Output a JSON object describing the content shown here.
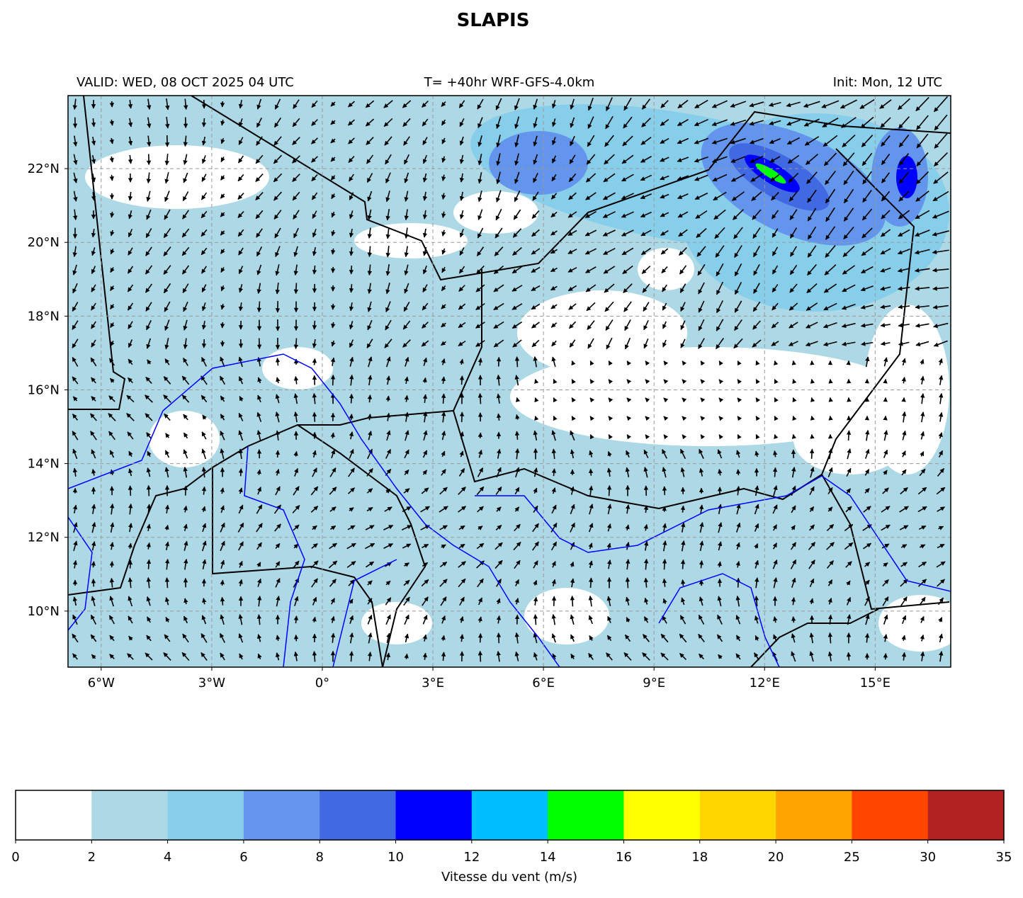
{
  "title": "SLAPIS",
  "valid": "VALID: WED, 08 OCT 2025 04 UTC",
  "run": "T= +40hr WRF-GFS-4.0km",
  "init": "Init: Mon, 12 UTC",
  "map": {
    "xlim": [
      -6.9,
      17.05
    ],
    "ylim": [
      8.48,
      23.98
    ],
    "xticks": [
      {
        "value": -6,
        "label": "6°W"
      },
      {
        "value": -3,
        "label": "3°W"
      },
      {
        "value": 0,
        "label": "0°"
      },
      {
        "value": 3,
        "label": "3°E"
      },
      {
        "value": 6,
        "label": "6°E"
      },
      {
        "value": 9,
        "label": "9°E"
      },
      {
        "value": 12,
        "label": "12°E"
      },
      {
        "value": 15,
        "label": "15°E"
      }
    ],
    "yticks": [
      {
        "value": 10,
        "label": "10°N"
      },
      {
        "value": 12,
        "label": "12°N"
      },
      {
        "value": 14,
        "label": "14°N"
      },
      {
        "value": 16,
        "label": "16°N"
      },
      {
        "value": 18,
        "label": "18°N"
      },
      {
        "value": 20,
        "label": "20°N"
      },
      {
        "value": 22,
        "label": "22°N"
      }
    ]
  },
  "colorbar": {
    "bounds": [
      0,
      2,
      4,
      6,
      8,
      10,
      12,
      14,
      16,
      18,
      20,
      25,
      30,
      35
    ],
    "colors": [
      "#ffffff",
      "#add8e6",
      "#87ceeb",
      "#6495ed",
      "#4169e1",
      "#0000ff",
      "#00bfff",
      "#00ff00",
      "#ffff00",
      "#ffd700",
      "#ffa500",
      "#ff4500",
      "#b22222"
    ],
    "label": "Vitesse du vent (m/s)"
  }
}
